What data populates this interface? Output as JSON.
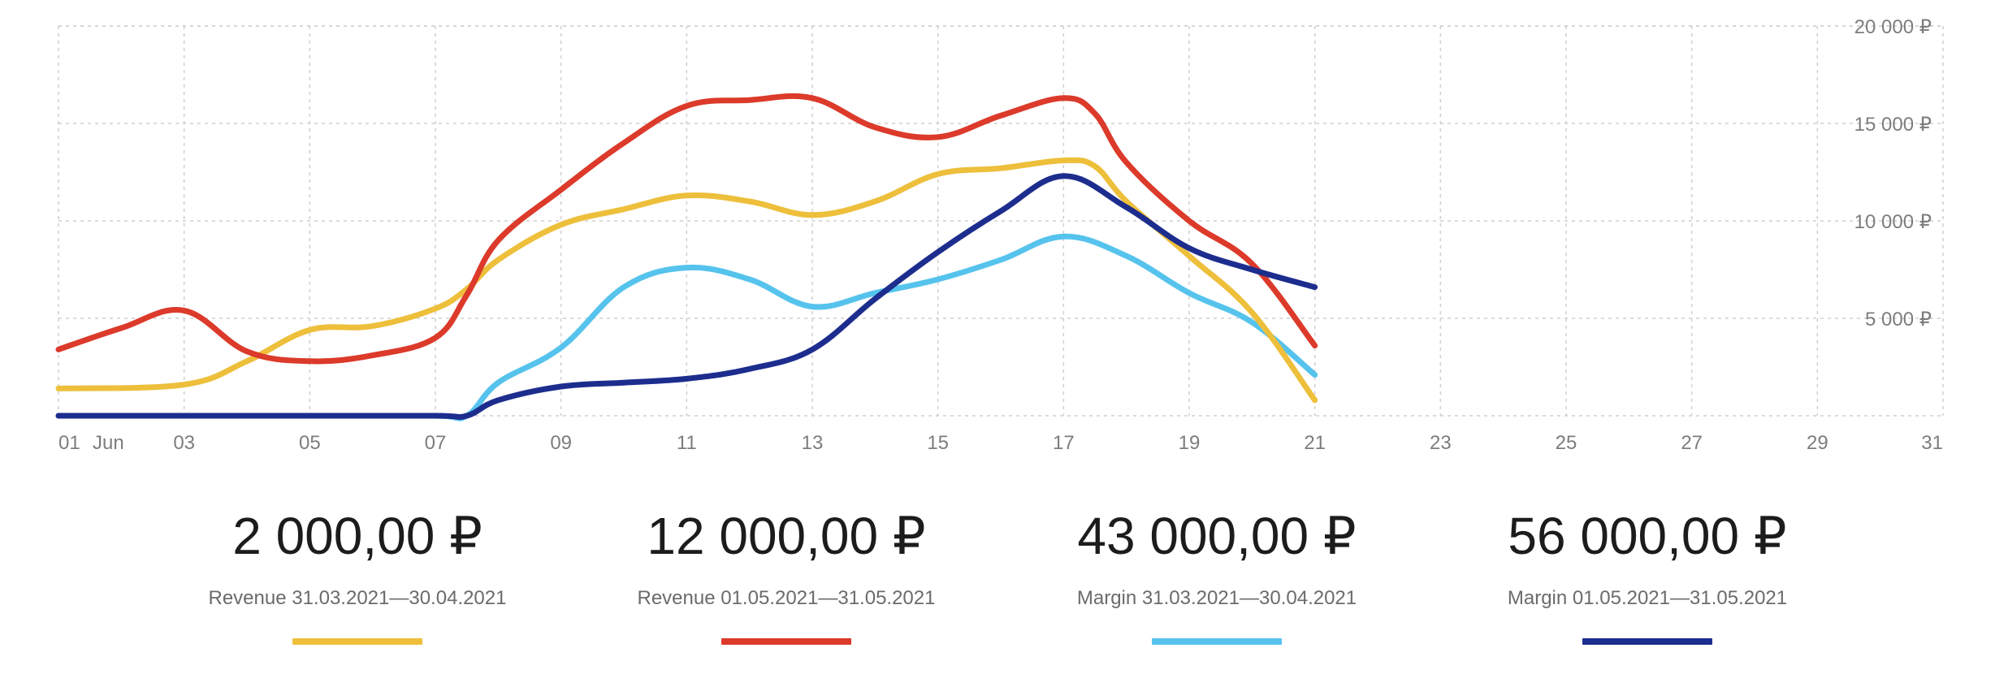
{
  "chart_data": {
    "type": "line",
    "x_tick_labels": [
      "01",
      "03",
      "05",
      "07",
      "09",
      "11",
      "13",
      "15",
      "17",
      "19",
      "21",
      "23",
      "25",
      "27",
      "29",
      "31"
    ],
    "x_month_label": "Jun",
    "x_range": [
      1,
      31
    ],
    "y_tick_labels": [
      "20 000 ₽",
      "15 000 ₽",
      "10 000 ₽",
      "5 000 ₽"
    ],
    "y_ticks": [
      20000,
      15000,
      10000,
      5000
    ],
    "ylim": [
      0,
      20000
    ],
    "grid": true,
    "grid_style": "dashed",
    "series": [
      {
        "name": "Revenue 31.03.2021—30.04.2021",
        "color": "#edbf3b",
        "x": [
          1,
          3,
          4,
          5,
          6,
          7,
          7.5,
          8,
          9,
          10,
          11,
          12,
          13,
          14,
          15,
          16,
          17,
          17.5,
          18,
          19,
          20,
          21
        ],
        "y": [
          1400,
          1600,
          2800,
          4400,
          4600,
          5500,
          6500,
          8000,
          9800,
          10600,
          11300,
          11000,
          10300,
          11000,
          12400,
          12700,
          13100,
          12800,
          11000,
          8200,
          5300,
          800
        ]
      },
      {
        "name": "Revenue 01.05.2021—31.05.2021",
        "color": "#dc3a2a",
        "x": [
          1,
          2,
          3,
          4,
          5,
          6,
          7,
          7.5,
          8,
          9,
          10,
          11,
          12,
          13,
          14,
          15,
          16,
          17,
          17.5,
          18,
          19,
          20,
          21
        ],
        "y": [
          3400,
          4500,
          5400,
          3300,
          2800,
          3100,
          4000,
          6200,
          9000,
          11600,
          14000,
          15900,
          16200,
          16300,
          14800,
          14300,
          15400,
          16300,
          15500,
          13000,
          10000,
          7800,
          3600
        ]
      },
      {
        "name": "Margin 31.03.2021—30.04.2021",
        "color": "#56c3ed",
        "x": [
          1,
          3,
          5,
          7,
          7.5,
          8,
          9,
          10,
          11,
          12,
          13,
          14,
          15,
          16,
          17,
          18,
          19,
          20,
          21
        ],
        "y": [
          0,
          0,
          0,
          0,
          0,
          1700,
          3500,
          6600,
          7600,
          7000,
          5600,
          6300,
          7000,
          8000,
          9200,
          8200,
          6300,
          4800,
          2100
        ]
      },
      {
        "name": "Margin 01.05.2021—31.05.2021",
        "color": "#1d2d8e",
        "x": [
          1,
          3,
          5,
          7,
          7.5,
          8,
          9,
          10,
          11,
          12,
          13,
          14,
          15,
          16,
          17,
          18,
          19,
          20,
          21
        ],
        "y": [
          0,
          0,
          0,
          0,
          0,
          800,
          1500,
          1700,
          1900,
          2400,
          3400,
          6000,
          8400,
          10500,
          12300,
          10700,
          8600,
          7500,
          6600
        ]
      }
    ]
  },
  "summary": [
    {
      "value": "2 000,00 ₽",
      "label": "Revenue 31.03.2021—30.04.2021",
      "color": "#edbf3b"
    },
    {
      "value": "12 000,00 ₽",
      "label": "Revenue 01.05.2021—31.05.2021",
      "color": "#dc3a2a"
    },
    {
      "value": "43 000,00 ₽",
      "label": "Margin 31.03.2021—30.04.2021",
      "color": "#56c3ed"
    },
    {
      "value": "56 000,00 ₽",
      "label": "Margin 01.05.2021—31.05.2021",
      "color": "#1d2d8e"
    }
  ]
}
